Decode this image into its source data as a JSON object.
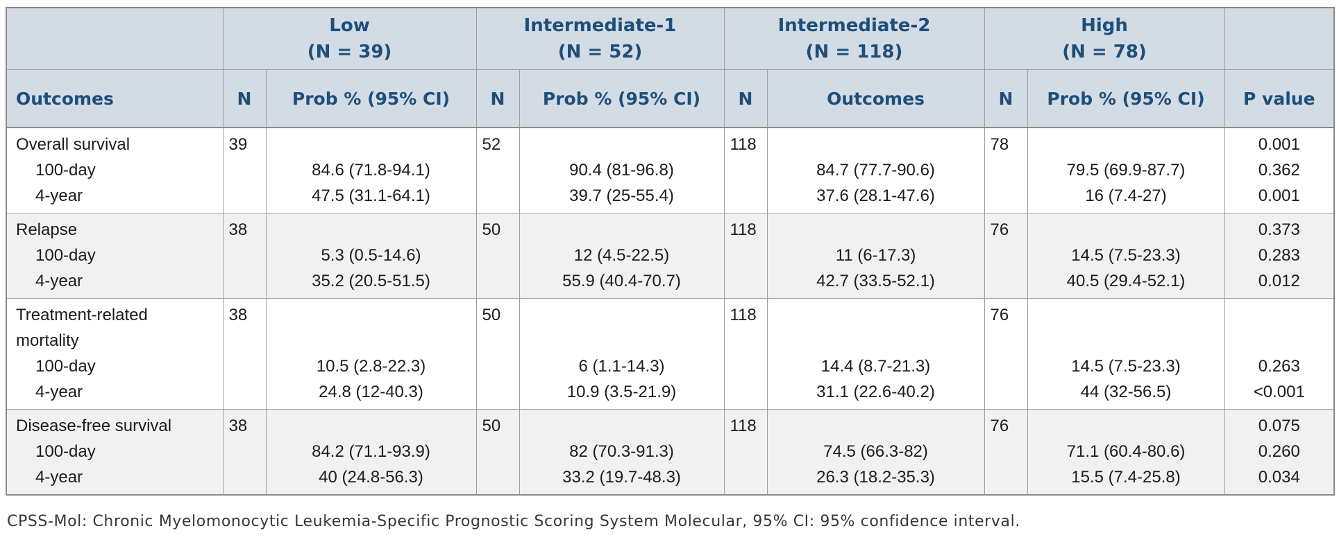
{
  "colors": {
    "header_bg": "#d3dce5",
    "header_text": "#1e4e79",
    "body_text": "#1c1c1c",
    "stripe_bg": "#f1f1f1",
    "grid_line": "#9e9e9e",
    "outer_border": "#8a8a8a"
  },
  "table": {
    "groups": [
      {
        "line1": "Low",
        "line2": "(N = 39)"
      },
      {
        "line1": "Intermediate-1",
        "line2": "(N = 52)"
      },
      {
        "line1": "Intermediate-2",
        "line2": "(N = 118)"
      },
      {
        "line1": "High",
        "line2": "(N = 78)"
      }
    ],
    "subheaders": {
      "outcomes": "Outcomes",
      "n": "N",
      "prob": "Prob % (95% CI)",
      "prob_int2": "Outcomes",
      "p_value": "P value"
    },
    "blocks": [
      {
        "id": "overall-survival",
        "striped": false,
        "lines": [
          {
            "outcome": "Overall survival",
            "indent": false,
            "n_low": "39",
            "n_int1": "52",
            "n_int2": "118",
            "n_high": "78",
            "prob_low": "",
            "prob_int1": "",
            "prob_int2": "",
            "prob_high": "",
            "p": "0.001"
          },
          {
            "outcome": "100-day",
            "indent": true,
            "n_low": "",
            "n_int1": "",
            "n_int2": "",
            "n_high": "",
            "prob_low": "84.6 (71.8-94.1)",
            "prob_int1": "90.4 (81-96.8)",
            "prob_int2": "84.7 (77.7-90.6)",
            "prob_high": "79.5 (69.9-87.7)",
            "p": "0.362"
          },
          {
            "outcome": "4-year",
            "indent": true,
            "n_low": "",
            "n_int1": "",
            "n_int2": "",
            "n_high": "",
            "prob_low": "47.5 (31.1-64.1)",
            "prob_int1": "39.7 (25-55.4)",
            "prob_int2": "37.6 (28.1-47.6)",
            "prob_high": "16 (7.4-27)",
            "p": "0.001"
          }
        ]
      },
      {
        "id": "relapse",
        "striped": true,
        "lines": [
          {
            "outcome": "Relapse",
            "indent": false,
            "n_low": "38",
            "n_int1": "50",
            "n_int2": "118",
            "n_high": "76",
            "prob_low": "",
            "prob_int1": "",
            "prob_int2": "",
            "prob_high": "",
            "p": "0.373"
          },
          {
            "outcome": "100-day",
            "indent": true,
            "n_low": "",
            "n_int1": "",
            "n_int2": "",
            "n_high": "",
            "prob_low": "5.3 (0.5-14.6)",
            "prob_int1": "12 (4.5-22.5)",
            "prob_int2": "11 (6-17.3)",
            "prob_high": "14.5 (7.5-23.3)",
            "p": "0.283"
          },
          {
            "outcome": "4-year",
            "indent": true,
            "n_low": "",
            "n_int1": "",
            "n_int2": "",
            "n_high": "",
            "prob_low": "35.2 (20.5-51.5)",
            "prob_int1": "55.9 (40.4-70.7)",
            "prob_int2": "42.7 (33.5-52.1)",
            "prob_high": "40.5 (29.4-52.1)",
            "p": "0.012"
          }
        ]
      },
      {
        "id": "treatment-related-mortality",
        "striped": false,
        "lines": [
          {
            "outcome": "Treatment-related",
            "indent": false,
            "n_low": "38",
            "n_int1": "50",
            "n_int2": "118",
            "n_high": "76",
            "prob_low": "",
            "prob_int1": "",
            "prob_int2": "",
            "prob_high": "",
            "p": ""
          },
          {
            "outcome": "mortality",
            "indent": false,
            "n_low": "",
            "n_int1": "",
            "n_int2": "",
            "n_high": "",
            "prob_low": "",
            "prob_int1": "",
            "prob_int2": "",
            "prob_high": "",
            "p": ""
          },
          {
            "outcome": "100-day",
            "indent": true,
            "n_low": "",
            "n_int1": "",
            "n_int2": "",
            "n_high": "",
            "prob_low": "10.5 (2.8-22.3)",
            "prob_int1": "6 (1.1-14.3)",
            "prob_int2": "14.4 (8.7-21.3)",
            "prob_high": "14.5 (7.5-23.3)",
            "p": "0.263"
          },
          {
            "outcome": "4-year",
            "indent": true,
            "n_low": "",
            "n_int1": "",
            "n_int2": "",
            "n_high": "",
            "prob_low": "24.8 (12-40.3)",
            "prob_int1": "10.9 (3.5-21.9)",
            "prob_int2": "31.1 (22.6-40.2)",
            "prob_high": "44 (32-56.5)",
            "p": "<0.001"
          }
        ]
      },
      {
        "id": "disease-free-survival",
        "striped": true,
        "lines": [
          {
            "outcome": "Disease-free survival",
            "indent": false,
            "n_low": "38",
            "n_int1": "50",
            "n_int2": "118",
            "n_high": "76",
            "prob_low": "",
            "prob_int1": "",
            "prob_int2": "",
            "prob_high": "",
            "p": "0.075"
          },
          {
            "outcome": "100-day",
            "indent": true,
            "n_low": "",
            "n_int1": "",
            "n_int2": "",
            "n_high": "",
            "prob_low": "84.2 (71.1-93.9)",
            "prob_int1": "82 (70.3-91.3)",
            "prob_int2": "74.5 (66.3-82)",
            "prob_high": "71.1 (60.4-80.6)",
            "p": "0.260"
          },
          {
            "outcome": "4-year",
            "indent": true,
            "n_low": "",
            "n_int1": "",
            "n_int2": "",
            "n_high": "",
            "prob_low": "40 (24.8-56.3)",
            "prob_int1": "33.2 (19.7-48.3)",
            "prob_int2": "26.3 (18.2-35.3)",
            "prob_high": "15.5 (7.4-25.8)",
            "p": "0.034"
          }
        ]
      }
    ]
  },
  "footer": {
    "caption": "CPSS-Mol: Chronic Myelomonocytic Leukemia-Specific Prognostic Scoring System Molecular, 95% CI: 95% confidence interval."
  }
}
